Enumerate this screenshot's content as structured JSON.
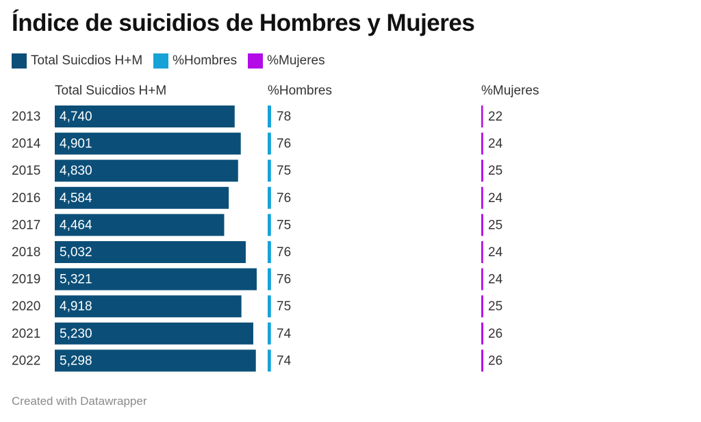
{
  "title": "Índice de suicidios de Hombres y Mujeres",
  "legend": [
    {
      "label": "Total Suicdios H+M",
      "color": "#0b4f78"
    },
    {
      "label": "%Hombres",
      "color": "#17a2d8"
    },
    {
      "label": "%Mujeres",
      "color": "#b40ce6"
    }
  ],
  "columns": {
    "total": "Total Suicdios H+M",
    "hombres": "%Hombres",
    "mujeres": "%Mujeres"
  },
  "footer": "Created with Datawrapper",
  "chart_data": {
    "type": "bar",
    "title": "Índice de suicidios de Hombres y Mujeres",
    "categories": [
      "2013",
      "2014",
      "2015",
      "2016",
      "2017",
      "2018",
      "2019",
      "2020",
      "2021",
      "2022"
    ],
    "series": [
      {
        "name": "Total Suicdios H+M",
        "color": "#0b4f78",
        "values": [
          4740,
          4901,
          4830,
          4584,
          4464,
          5032,
          5321,
          4918,
          5230,
          5298
        ],
        "labels": [
          "4,740",
          "4,901",
          "4,830",
          "4,584",
          "4,464",
          "5,032",
          "5,321",
          "4,918",
          "5,230",
          "5,298"
        ]
      },
      {
        "name": "%Hombres",
        "color": "#17a2d8",
        "values": [
          78,
          76,
          75,
          76,
          75,
          76,
          76,
          75,
          74,
          74
        ]
      },
      {
        "name": "%Mujeres",
        "color": "#b40ce6",
        "values": [
          22,
          24,
          25,
          24,
          25,
          24,
          24,
          25,
          26,
          26
        ]
      }
    ],
    "legend_position": "top-left"
  }
}
